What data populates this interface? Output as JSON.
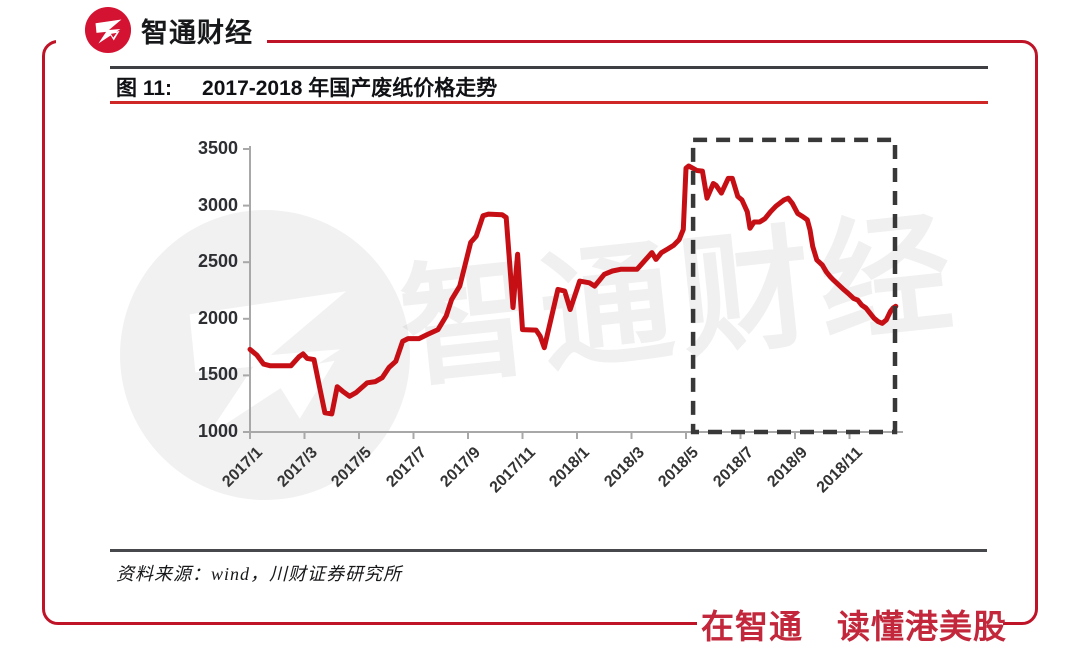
{
  "brand": {
    "name": "智通财经"
  },
  "figure": {
    "label": "图 11:",
    "title": "2017-2018 年国产废纸价格走势"
  },
  "source_text": "资料来源：wind，川财证券研究所",
  "footer_slogan": "在智通　读懂港美股",
  "watermark_chars": [
    "智",
    "通",
    "财",
    "经"
  ],
  "colors": {
    "frame_red": "#bf1428",
    "logo_red": "#d41231",
    "title_rule_red": "#cf2626",
    "line_red": "#c50f15",
    "axis_gray": "#a8a8a8",
    "dashed_box": "#383838",
    "footer_red": "#c2273b"
  },
  "chart_data": {
    "type": "line",
    "title": "2017-2018 年国产废纸价格走势",
    "grid": "off",
    "legend": "none",
    "x_axis": {
      "unit": "month index from 2017/1 (0 = 2017/1, 2 = 2017/3, ...)",
      "tick_step_months": 2,
      "tick_labels": [
        "2017/1",
        "2017/3",
        "2017/5",
        "2017/7",
        "2017/9",
        "2017/11",
        "2018/1",
        "2018/3",
        "2018/5",
        "2018/7",
        "2018/9",
        "2018/11"
      ]
    },
    "y_axis": {
      "min": 1000,
      "max": 3500,
      "ticks": [
        3500,
        3000,
        2500,
        2000,
        1500,
        1000
      ]
    },
    "highlight_box": {
      "style": "black dashed rectangle",
      "from_month_index": 16.26,
      "to_month_index": 23.67,
      "value_top": 3580,
      "value_bottom": 1000
    },
    "series": [
      {
        "name": "国产废纸价格",
        "color": "#c50f15",
        "points": [
          [
            0.0,
            1730
          ],
          [
            0.25,
            1680
          ],
          [
            0.5,
            1600
          ],
          [
            0.75,
            1585
          ],
          [
            1.5,
            1585
          ],
          [
            1.8,
            1665
          ],
          [
            1.95,
            1690
          ],
          [
            2.1,
            1650
          ],
          [
            2.35,
            1640
          ],
          [
            2.55,
            1400
          ],
          [
            2.75,
            1170
          ],
          [
            3.0,
            1160
          ],
          [
            3.2,
            1400
          ],
          [
            3.4,
            1360
          ],
          [
            3.65,
            1315
          ],
          [
            3.9,
            1350
          ],
          [
            4.3,
            1435
          ],
          [
            4.6,
            1445
          ],
          [
            4.85,
            1480
          ],
          [
            5.1,
            1570
          ],
          [
            5.35,
            1625
          ],
          [
            5.6,
            1800
          ],
          [
            5.8,
            1825
          ],
          [
            6.2,
            1825
          ],
          [
            6.5,
            1860
          ],
          [
            6.9,
            1905
          ],
          [
            7.2,
            2025
          ],
          [
            7.4,
            2170
          ],
          [
            7.7,
            2290
          ],
          [
            8.1,
            2675
          ],
          [
            8.3,
            2730
          ],
          [
            8.55,
            2910
          ],
          [
            8.75,
            2925
          ],
          [
            9.25,
            2920
          ],
          [
            9.4,
            2895
          ],
          [
            9.65,
            2100
          ],
          [
            9.82,
            2570
          ],
          [
            10.0,
            1905
          ],
          [
            10.5,
            1900
          ],
          [
            10.65,
            1845
          ],
          [
            10.8,
            1745
          ],
          [
            11.3,
            2260
          ],
          [
            11.55,
            2245
          ],
          [
            11.75,
            2082
          ],
          [
            12.1,
            2333
          ],
          [
            12.45,
            2318
          ],
          [
            12.65,
            2289
          ],
          [
            13.0,
            2393
          ],
          [
            13.3,
            2422
          ],
          [
            13.6,
            2437
          ],
          [
            14.2,
            2437
          ],
          [
            14.75,
            2585
          ],
          [
            14.9,
            2525
          ],
          [
            15.1,
            2585
          ],
          [
            15.35,
            2620
          ],
          [
            15.55,
            2650
          ],
          [
            15.75,
            2700
          ],
          [
            15.9,
            2790
          ],
          [
            16.0,
            3330
          ],
          [
            16.1,
            3350
          ],
          [
            16.25,
            3330
          ],
          [
            16.4,
            3310
          ],
          [
            16.6,
            3305
          ],
          [
            16.77,
            3065
          ],
          [
            17.0,
            3195
          ],
          [
            17.1,
            3180
          ],
          [
            17.3,
            3110
          ],
          [
            17.55,
            3240
          ],
          [
            17.7,
            3240
          ],
          [
            17.9,
            3080
          ],
          [
            18.05,
            3050
          ],
          [
            18.25,
            2945
          ],
          [
            18.35,
            2800
          ],
          [
            18.5,
            2855
          ],
          [
            18.7,
            2855
          ],
          [
            18.9,
            2885
          ],
          [
            19.1,
            2945
          ],
          [
            19.3,
            2995
          ],
          [
            19.6,
            3050
          ],
          [
            19.75,
            3065
          ],
          [
            19.9,
            3020
          ],
          [
            20.0,
            2975
          ],
          [
            20.1,
            2930
          ],
          [
            20.3,
            2900
          ],
          [
            20.45,
            2875
          ],
          [
            20.55,
            2785
          ],
          [
            20.65,
            2640
          ],
          [
            20.8,
            2520
          ],
          [
            21.0,
            2475
          ],
          [
            21.15,
            2415
          ],
          [
            21.3,
            2370
          ],
          [
            21.4,
            2345
          ],
          [
            21.6,
            2300
          ],
          [
            21.8,
            2255
          ],
          [
            21.95,
            2225
          ],
          [
            22.15,
            2180
          ],
          [
            22.3,
            2165
          ],
          [
            22.45,
            2120
          ],
          [
            22.6,
            2095
          ],
          [
            22.75,
            2050
          ],
          [
            22.9,
            2005
          ],
          [
            23.05,
            1975
          ],
          [
            23.2,
            1960
          ],
          [
            23.35,
            1990
          ],
          [
            23.5,
            2065
          ],
          [
            23.6,
            2095
          ],
          [
            23.7,
            2110
          ]
        ]
      }
    ]
  }
}
